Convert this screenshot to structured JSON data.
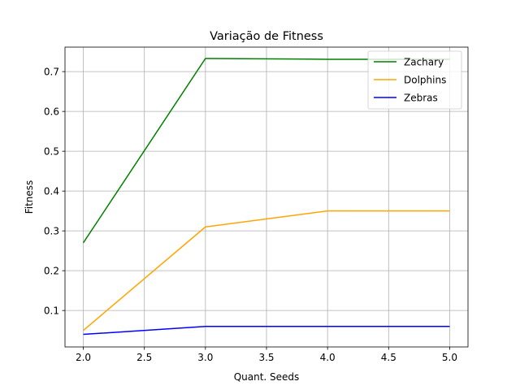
{
  "chart_data": {
    "type": "line",
    "title": "Variação de Fitness",
    "xlabel": "Quant. Seeds",
    "ylabel": "Fitness",
    "x": [
      2.0,
      3.0,
      4.0,
      5.0
    ],
    "xlim": [
      1.85,
      5.15
    ],
    "ylim": [
      0.0085,
      0.7615
    ],
    "xticks": [
      2.0,
      2.5,
      3.0,
      3.5,
      4.0,
      4.5,
      5.0
    ],
    "xtick_labels": [
      "2.0",
      "2.5",
      "3.0",
      "3.5",
      "4.0",
      "4.5",
      "5.0"
    ],
    "yticks": [
      0.1,
      0.2,
      0.3,
      0.4,
      0.5,
      0.6,
      0.7
    ],
    "ytick_labels": [
      "0.1",
      "0.2",
      "0.3",
      "0.4",
      "0.5",
      "0.6",
      "0.7"
    ],
    "grid": true,
    "legend_position": "top-right",
    "series": [
      {
        "name": "Zachary",
        "color": "#008000",
        "values": [
          0.27,
          0.733,
          0.731,
          0.731
        ]
      },
      {
        "name": "Dolphins",
        "color": "#ffa500",
        "values": [
          0.05,
          0.31,
          0.35,
          0.35
        ]
      },
      {
        "name": "Zebras",
        "color": "#0000ff",
        "values": [
          0.04,
          0.06,
          0.06,
          0.06
        ]
      }
    ]
  }
}
